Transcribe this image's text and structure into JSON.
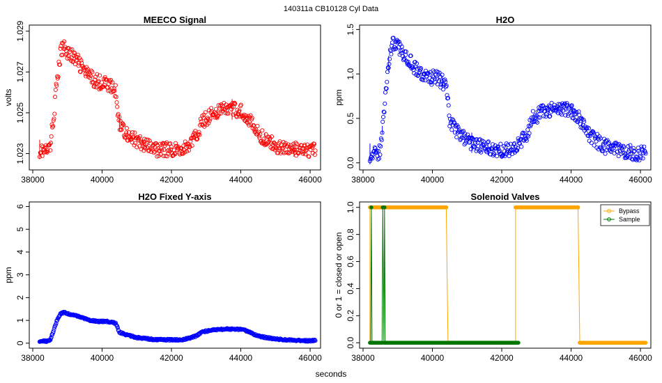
{
  "figure": {
    "suptitle": "140311a    CB10128   Cyl Data",
    "xlabel": "seconds"
  },
  "chart_data": [
    {
      "type": "scatter",
      "title": "MEECO Signal",
      "xlabel": "",
      "ylabel": "volts",
      "xlim": [
        37900,
        46300
      ],
      "ylim": [
        1.0222,
        1.0293
      ],
      "xticks": [
        38000,
        40000,
        42000,
        44000,
        46000
      ],
      "xtick_labels": [
        "38000",
        "40000",
        "42000",
        "44000",
        "46000"
      ],
      "yticks": [
        1.023,
        1.025,
        1.027,
        1.029
      ],
      "ytick_labels": [
        "1.023",
        "1.025",
        "1.027",
        "1.029"
      ],
      "series": [
        {
          "name": "MEECO Signal",
          "color": "#ff0000",
          "x": [
            38200,
            38400,
            38500,
            38600,
            38700,
            38800,
            38900,
            39000,
            39300,
            39600,
            39900,
            40100,
            40300,
            40400,
            40450,
            40500,
            40700,
            41000,
            41500,
            42000,
            42300,
            42500,
            42700,
            42900,
            43200,
            43600,
            44000,
            44200,
            44400,
            44600,
            45000,
            45500,
            46000,
            46150
          ],
          "y": [
            1.0232,
            1.0231,
            1.0233,
            1.0248,
            1.0265,
            1.0279,
            1.0283,
            1.028,
            1.0275,
            1.0268,
            1.0265,
            1.0265,
            1.0262,
            1.026,
            1.0252,
            1.0245,
            1.024,
            1.0236,
            1.0232,
            1.0232,
            1.0232,
            1.0234,
            1.0238,
            1.0246,
            1.025,
            1.0252,
            1.0251,
            1.0248,
            1.0242,
            1.0238,
            1.0234,
            1.0232,
            1.0231,
            1.0232
          ]
        }
      ]
    },
    {
      "type": "scatter",
      "title": "H2O",
      "xlabel": "",
      "ylabel": "ppm",
      "xlim": [
        37900,
        46300
      ],
      "ylim": [
        -0.08,
        1.55
      ],
      "xticks": [
        38000,
        40000,
        42000,
        44000,
        46000
      ],
      "xtick_labels": [
        "38000",
        "40000",
        "42000",
        "44000",
        "46000"
      ],
      "yticks": [
        0.0,
        0.5,
        1.0,
        1.5
      ],
      "ytick_labels": [
        "0.0",
        "0.5",
        "1.0",
        "1.5"
      ],
      "series": [
        {
          "name": "H2O",
          "color": "#0000ff",
          "x": [
            38200,
            38400,
            38500,
            38600,
            38700,
            38800,
            38900,
            39000,
            39300,
            39600,
            39900,
            40100,
            40300,
            40400,
            40450,
            40500,
            40700,
            41000,
            41500,
            42000,
            42300,
            42500,
            42700,
            42900,
            43200,
            43600,
            44000,
            44200,
            44400,
            44600,
            45000,
            45500,
            46000,
            46150
          ],
          "y": [
            0.1,
            0.09,
            0.14,
            0.55,
            1.0,
            1.28,
            1.36,
            1.3,
            1.18,
            1.02,
            0.95,
            0.96,
            0.91,
            0.86,
            0.66,
            0.48,
            0.36,
            0.25,
            0.16,
            0.15,
            0.15,
            0.21,
            0.31,
            0.5,
            0.58,
            0.62,
            0.6,
            0.53,
            0.38,
            0.28,
            0.18,
            0.13,
            0.1,
            0.12
          ]
        }
      ]
    },
    {
      "type": "scatter",
      "title": "H2O Fixed Y-axis",
      "xlabel": "",
      "ylabel": "ppm",
      "xlim": [
        37900,
        46300
      ],
      "ylim": [
        -0.22,
        6.2
      ],
      "xticks": [
        38000,
        40000,
        42000,
        44000,
        46000
      ],
      "xtick_labels": [
        "38000",
        "40000",
        "42000",
        "44000",
        "46000"
      ],
      "yticks": [
        0,
        1,
        2,
        3,
        4,
        5,
        6
      ],
      "ytick_labels": [
        "0",
        "1",
        "2",
        "3",
        "4",
        "5",
        "6"
      ],
      "series": [
        {
          "name": "H2O",
          "color": "#0000ff",
          "x": [
            38200,
            38400,
            38500,
            38600,
            38700,
            38800,
            38900,
            39000,
            39300,
            39600,
            39900,
            40100,
            40300,
            40400,
            40450,
            40500,
            40700,
            41000,
            41500,
            42000,
            42300,
            42500,
            42700,
            42900,
            43200,
            43600,
            44000,
            44200,
            44400,
            44600,
            45000,
            45500,
            46000,
            46150
          ],
          "y": [
            0.1,
            0.09,
            0.14,
            0.55,
            1.0,
            1.28,
            1.36,
            1.3,
            1.18,
            1.02,
            0.95,
            0.96,
            0.91,
            0.86,
            0.66,
            0.48,
            0.36,
            0.25,
            0.16,
            0.15,
            0.15,
            0.21,
            0.31,
            0.5,
            0.58,
            0.62,
            0.6,
            0.53,
            0.38,
            0.28,
            0.18,
            0.13,
            0.1,
            0.12
          ]
        }
      ]
    },
    {
      "type": "line",
      "title": "Solenoid Valves",
      "xlabel": "",
      "ylabel": "0 or 1 = closed or open",
      "xlim": [
        37900,
        46300
      ],
      "ylim": [
        -0.04,
        1.04
      ],
      "xticks": [
        38000,
        40000,
        42000,
        44000,
        46000
      ],
      "xtick_labels": [
        "38000",
        "40000",
        "42000",
        "44000",
        "46000"
      ],
      "yticks": [
        0.0,
        0.2,
        0.4,
        0.6,
        0.8,
        1.0
      ],
      "ytick_labels": [
        "0.0",
        "0.2",
        "0.4",
        "0.6",
        "0.8",
        "1.0"
      ],
      "legend": "top-right",
      "series": [
        {
          "name": "Bypass",
          "color": "#ffa500",
          "x": [
            38200,
            38200,
            38250,
            38250,
            40400,
            40400,
            40450,
            42400,
            42400,
            42450,
            42450,
            44200,
            44200,
            44250,
            46150
          ],
          "y": [
            0,
            1,
            1,
            1,
            1,
            1,
            0,
            0,
            1,
            1,
            1,
            1,
            1,
            0,
            0
          ]
        },
        {
          "name": "Sample",
          "color": "#007700",
          "x": [
            38200,
            38220,
            38240,
            38260,
            38280,
            38550,
            38570,
            38600,
            38620,
            38640,
            42420,
            42440,
            42460,
            42480
          ],
          "y": [
            0,
            0,
            1,
            0,
            0,
            0,
            1,
            0,
            1,
            0,
            0,
            0,
            0,
            0
          ]
        }
      ]
    }
  ]
}
